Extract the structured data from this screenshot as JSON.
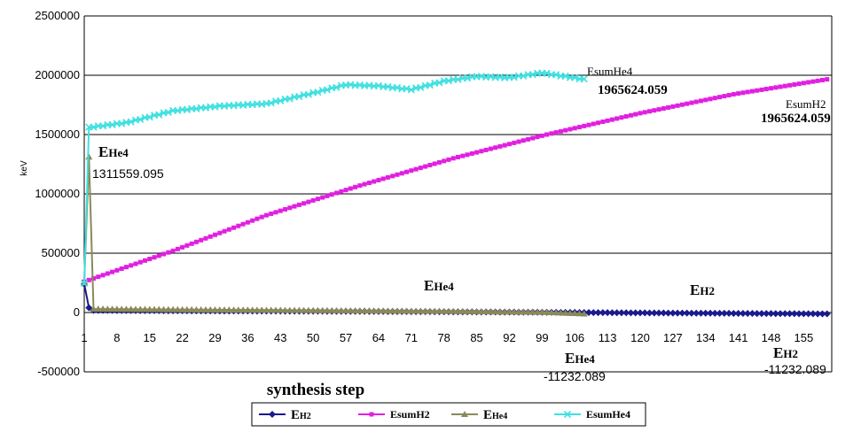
{
  "chart_data": {
    "type": "line",
    "title": "",
    "xlabel": "synthesis step",
    "ylabel": "keV",
    "x_range": [
      1,
      161
    ],
    "ylim": [
      -500000,
      2500000
    ],
    "yticks": [
      "2500000",
      "2000000",
      "1500000",
      "1000000",
      "500000",
      "0",
      "-500000"
    ],
    "xticks": [
      "1",
      "8",
      "15",
      "22",
      "29",
      "36",
      "43",
      "50",
      "57",
      "64",
      "71",
      "78",
      "85",
      "92",
      "99",
      "106",
      "113",
      "120",
      "127",
      "134",
      "141",
      "148",
      "155"
    ],
    "grid": true,
    "legend_position": "bottom",
    "series": [
      {
        "name": "EH2",
        "name_main": "E",
        "name_sub": "H2",
        "color": "#1a1a8c",
        "marker": "diamond",
        "points": [
          [
            1,
            240000
          ],
          [
            2,
            40000
          ],
          [
            3,
            18000
          ],
          [
            20,
            15000
          ],
          [
            40,
            12000
          ],
          [
            60,
            10000
          ],
          [
            80,
            6000
          ],
          [
            100,
            2000
          ],
          [
            120,
            -3000
          ],
          [
            140,
            -7000
          ],
          [
            160,
            -11232.089
          ]
        ]
      },
      {
        "name": "EsumH2",
        "color": "#e020e0",
        "marker": "square",
        "points": [
          [
            1,
            260000
          ],
          [
            20,
            520000
          ],
          [
            40,
            820000
          ],
          [
            60,
            1070000
          ],
          [
            80,
            1300000
          ],
          [
            100,
            1500000
          ],
          [
            120,
            1680000
          ],
          [
            140,
            1840000
          ],
          [
            160,
            1965624.059
          ]
        ]
      },
      {
        "name": "EHe4",
        "name_main": "E",
        "name_sub": "He4",
        "color": "#8a8a58",
        "marker": "triangle",
        "points": [
          [
            1,
            250000
          ],
          [
            2,
            1311559.095
          ],
          [
            3,
            30000
          ],
          [
            20,
            25000
          ],
          [
            40,
            20000
          ],
          [
            60,
            15000
          ],
          [
            80,
            10000
          ],
          [
            100,
            2000
          ],
          [
            108,
            -11232.089
          ]
        ]
      },
      {
        "name": "EsumHe4",
        "color": "#40e0e0",
        "marker": "x",
        "points": [
          [
            1,
            250000
          ],
          [
            2,
            1560000
          ],
          [
            10,
            1600000
          ],
          [
            20,
            1700000
          ],
          [
            30,
            1740000
          ],
          [
            40,
            1760000
          ],
          [
            50,
            1850000
          ],
          [
            57,
            1920000
          ],
          [
            64,
            1910000
          ],
          [
            71,
            1880000
          ],
          [
            78,
            1950000
          ],
          [
            85,
            1990000
          ],
          [
            92,
            1980000
          ],
          [
            99,
            2020000
          ],
          [
            108,
            1965624.059
          ]
        ]
      }
    ],
    "annotations": [
      {
        "id": "esumhe4-label",
        "text": "EsumHe4"
      },
      {
        "id": "esumhe4-value",
        "text": "1965624.059"
      },
      {
        "id": "esumh2-label",
        "text": "EsumH2"
      },
      {
        "id": "esumh2-value",
        "text": "1965624.059"
      },
      {
        "id": "ehe4-top-label",
        "main": "E",
        "sub": "He4"
      },
      {
        "id": "ehe4-top-value",
        "text": "1311559.095"
      },
      {
        "id": "ehe4-mid-label",
        "main": "E",
        "sub": "He4"
      },
      {
        "id": "eh2-mid-label",
        "main": "E",
        "sub": "H2"
      },
      {
        "id": "ehe4-bottom-label",
        "main": "E",
        "sub": "He4"
      },
      {
        "id": "ehe4-bottom-value",
        "text": "-11232.089"
      },
      {
        "id": "eh2-bottom-label",
        "main": "E",
        "sub": "H2"
      },
      {
        "id": "eh2-bottom-value",
        "text": "-11232.089"
      }
    ]
  }
}
